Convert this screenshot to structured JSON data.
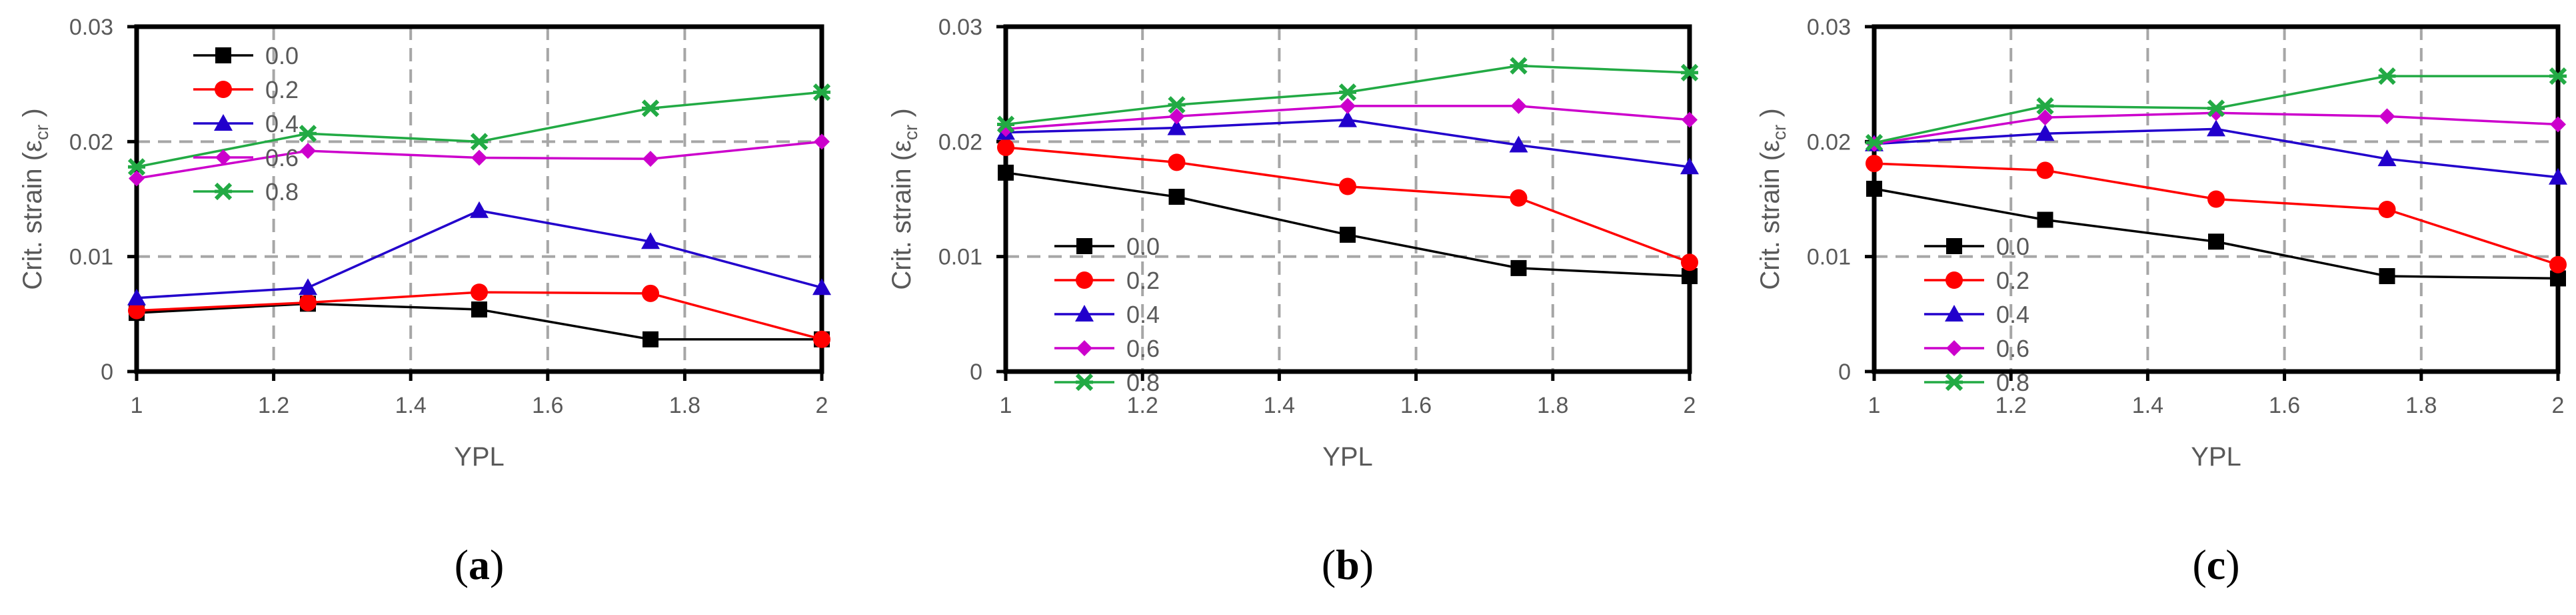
{
  "chart_data": [
    {
      "id": "a",
      "panel_label": "a",
      "type": "line",
      "xlabel": "YPL",
      "ylabel_main": "Crit. strain (ε",
      "ylabel_sub": "cr",
      "ylabel_close": " )",
      "xlim": [
        1,
        2
      ],
      "ylim": [
        0,
        0.03
      ],
      "xticks": [
        1,
        1.2,
        1.4,
        1.6,
        1.8,
        2
      ],
      "xtick_labels": [
        "1",
        "1.2",
        "1.4",
        "1.6",
        "1.8",
        "2"
      ],
      "yticks": [
        0,
        0.01,
        0.02,
        0.03
      ],
      "ytick_labels": [
        "0",
        "0.01",
        "0.02",
        "0.03"
      ],
      "grid": true,
      "legend_position": "top-left",
      "x": [
        1,
        1.25,
        1.5,
        1.75,
        2
      ],
      "series": [
        {
          "name": "0.0",
          "color": "#000000",
          "marker": "square",
          "values": [
            0.0051,
            0.0059,
            0.0054,
            0.0028,
            0.0028
          ]
        },
        {
          "name": "0.2",
          "color": "#ff0000",
          "marker": "circle",
          "values": [
            0.0053,
            0.006,
            0.0069,
            0.0068,
            0.0028
          ]
        },
        {
          "name": "0.4",
          "color": "#2200cc",
          "marker": "triangle",
          "values": [
            0.0064,
            0.0073,
            0.014,
            0.0113,
            0.0073
          ]
        },
        {
          "name": "0.6",
          "color": "#cc00cc",
          "marker": "diamond",
          "values": [
            0.0168,
            0.0192,
            0.0186,
            0.0185,
            0.02
          ]
        },
        {
          "name": "0.8",
          "color": "#22aa44",
          "marker": "star",
          "values": [
            0.0178,
            0.0207,
            0.02,
            0.0229,
            0.0243
          ]
        }
      ]
    },
    {
      "id": "b",
      "panel_label": "b",
      "type": "line",
      "xlabel": "YPL",
      "ylabel_main": "Crit. strain (ε",
      "ylabel_sub": "cr",
      "ylabel_close": " )",
      "xlim": [
        1,
        2
      ],
      "ylim": [
        0,
        0.03
      ],
      "xticks": [
        1,
        1.2,
        1.4,
        1.6,
        1.8,
        2
      ],
      "xtick_labels": [
        "1",
        "1.2",
        "1.4",
        "1.6",
        "1.8",
        "2"
      ],
      "yticks": [
        0,
        0.01,
        0.02,
        0.03
      ],
      "ytick_labels": [
        "0",
        "0.01",
        "0.02",
        "0.03"
      ],
      "grid": true,
      "legend_position": "center-left",
      "x": [
        1,
        1.25,
        1.5,
        1.75,
        2
      ],
      "series": [
        {
          "name": "0.0",
          "color": "#000000",
          "marker": "square",
          "values": [
            0.0173,
            0.0152,
            0.0119,
            0.009,
            0.0083
          ]
        },
        {
          "name": "0.2",
          "color": "#ff0000",
          "marker": "circle",
          "values": [
            0.0195,
            0.0182,
            0.0161,
            0.0151,
            0.0095
          ]
        },
        {
          "name": "0.4",
          "color": "#2200cc",
          "marker": "triangle",
          "values": [
            0.0208,
            0.0212,
            0.0219,
            0.0197,
            0.0178
          ]
        },
        {
          "name": "0.6",
          "color": "#cc00cc",
          "marker": "diamond",
          "values": [
            0.0211,
            0.0222,
            0.0231,
            0.0231,
            0.0219
          ]
        },
        {
          "name": "0.8",
          "color": "#22aa44",
          "marker": "star",
          "values": [
            0.0215,
            0.0232,
            0.0243,
            0.0266,
            0.026
          ]
        }
      ]
    },
    {
      "id": "c",
      "panel_label": "c",
      "type": "line",
      "xlabel": "YPL",
      "ylabel_main": "Crit. strain (ε",
      "ylabel_sub": "cr",
      "ylabel_close": " )",
      "xlim": [
        1,
        2
      ],
      "ylim": [
        0,
        0.03
      ],
      "xticks": [
        1,
        1.2,
        1.4,
        1.6,
        1.8,
        2
      ],
      "xtick_labels": [
        "1",
        "1.2",
        "1.4",
        "1.6",
        "1.8",
        "2"
      ],
      "yticks": [
        0,
        0.01,
        0.02,
        0.03
      ],
      "ytick_labels": [
        "0",
        "0.01",
        "0.02",
        "0.03"
      ],
      "grid": true,
      "legend_position": "center-left",
      "x": [
        1,
        1.25,
        1.5,
        1.75,
        2
      ],
      "series": [
        {
          "name": "0.0",
          "color": "#000000",
          "marker": "square",
          "values": [
            0.0159,
            0.0132,
            0.0113,
            0.0083,
            0.0081
          ]
        },
        {
          "name": "0.2",
          "color": "#ff0000",
          "marker": "circle",
          "values": [
            0.0181,
            0.0175,
            0.015,
            0.0141,
            0.0093
          ]
        },
        {
          "name": "0.4",
          "color": "#2200cc",
          "marker": "triangle",
          "values": [
            0.0198,
            0.0207,
            0.0211,
            0.0185,
            0.0169
          ]
        },
        {
          "name": "0.6",
          "color": "#cc00cc",
          "marker": "diamond",
          "values": [
            0.0198,
            0.0221,
            0.0225,
            0.0222,
            0.0215
          ]
        },
        {
          "name": "0.8",
          "color": "#22aa44",
          "marker": "star",
          "values": [
            0.0199,
            0.0231,
            0.0229,
            0.0257,
            0.0257
          ]
        }
      ]
    }
  ]
}
